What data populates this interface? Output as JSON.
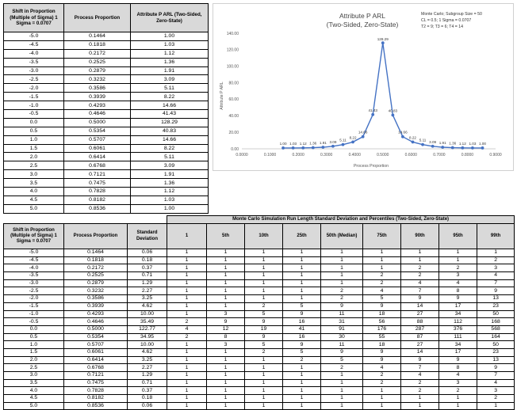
{
  "table1": {
    "headers": [
      "Shift in Proportion (Multiple of Sigma) 1 Sigma = 0.0707",
      "Process Proportion",
      "Attribute P ARL (Two-Sided, Zero-State)"
    ],
    "rows": [
      [
        "-5.0",
        "0.1464",
        "1.00"
      ],
      [
        "-4.5",
        "0.1818",
        "1.03"
      ],
      [
        "-4.0",
        "0.2172",
        "1.12"
      ],
      [
        "-3.5",
        "0.2525",
        "1.36"
      ],
      [
        "-3.0",
        "0.2879",
        "1.91"
      ],
      [
        "-2.5",
        "0.3232",
        "3.09"
      ],
      [
        "-2.0",
        "0.3586",
        "5.11"
      ],
      [
        "-1.5",
        "0.3939",
        "8.22"
      ],
      [
        "-1.0",
        "0.4293",
        "14.66"
      ],
      [
        "-0.5",
        "0.4646",
        "41.43"
      ],
      [
        "0.0",
        "0.5000",
        "128.29"
      ],
      [
        "0.5",
        "0.5354",
        "40.83"
      ],
      [
        "1.0",
        "0.5707",
        "14.66"
      ],
      [
        "1.5",
        "0.6061",
        "8.22"
      ],
      [
        "2.0",
        "0.6414",
        "5.11"
      ],
      [
        "2.5",
        "0.6768",
        "3.09"
      ],
      [
        "3.0",
        "0.7121",
        "1.91"
      ],
      [
        "3.5",
        "0.7475",
        "1.36"
      ],
      [
        "4.0",
        "0.7828",
        "1.12"
      ],
      [
        "4.5",
        "0.8182",
        "1.03"
      ],
      [
        "5.0",
        "0.8536",
        "1.00"
      ]
    ]
  },
  "chart_data": {
    "type": "line",
    "title": "Attribute P ARL",
    "subtitle": "(Two-Sided, Zero-State)",
    "annotation": [
      "Monte Carlo; Subgroup Size = 50",
      "CL = 0.5; 1 Sigma = 0.0707",
      "T2 = 9; T3 = 6; T4 = 14"
    ],
    "xlabel": "Process Proportion",
    "ylabel": "Attribute P ARL",
    "xlim": [
      0,
      0.9
    ],
    "ylim": [
      0,
      140
    ],
    "x_ticks": [
      "0.0000",
      "0.1000",
      "0.2000",
      "0.3000",
      "0.4000",
      "0.5000",
      "0.6000",
      "0.7000",
      "0.8000",
      "0.9000"
    ],
    "y_ticks": [
      "0.00",
      "20.00",
      "40.00",
      "60.00",
      "80.00",
      "100.00",
      "120.00",
      "140.00"
    ],
    "series": [
      {
        "x": [
          0.1464,
          0.1818,
          0.2172,
          0.2525,
          0.2879,
          0.3232,
          0.3586,
          0.3939,
          0.4293,
          0.4646,
          0.5,
          0.5354,
          0.5707,
          0.6061,
          0.6414,
          0.6768,
          0.7121,
          0.7475,
          0.7828,
          0.8182,
          0.8536
        ],
        "y": [
          1.0,
          1.03,
          1.12,
          1.36,
          1.91,
          3.09,
          5.11,
          8.22,
          14.66,
          41.43,
          128.29,
          40.83,
          14.66,
          8.22,
          5.11,
          3.09,
          1.91,
          1.36,
          1.12,
          1.03,
          1.0
        ],
        "labels": [
          "1.00",
          "1.03",
          "1.12",
          "1.36",
          "1.91",
          "3.09",
          "5.11",
          "8.22",
          "14.66",
          "41.43",
          "128.29",
          "40.83",
          "14.66",
          "8.22",
          "5.11",
          "3.09",
          "1.91",
          "1.36",
          "1.12",
          "1.03",
          "1.00"
        ]
      }
    ],
    "colors": {
      "line": "#4472c4"
    },
    "grid": false
  },
  "table2": {
    "title": "Monte Carlo Simulation Run Length Standard Deviation and Percentiles (Two-Sided, Zero-State)",
    "headers": [
      "Shift in Proportion (Multiple of Sigma) 1 Sigma = 0.0707",
      "Process Proportion",
      "Standard Deviation",
      "1",
      "5th",
      "10th",
      "25th",
      "50th (Median)",
      "75th",
      "90th",
      "95th",
      "99th"
    ],
    "rows": [
      [
        "-5.0",
        "0.1464",
        "0.06",
        "1",
        "1",
        "1",
        "1",
        "1",
        "1",
        "1",
        "1",
        "1"
      ],
      [
        "-4.5",
        "0.1818",
        "0.18",
        "1",
        "1",
        "1",
        "1",
        "1",
        "1",
        "1",
        "1",
        "2"
      ],
      [
        "-4.0",
        "0.2172",
        "0.37",
        "1",
        "1",
        "1",
        "1",
        "1",
        "1",
        "2",
        "2",
        "3"
      ],
      [
        "-3.5",
        "0.2525",
        "0.71",
        "1",
        "1",
        "1",
        "1",
        "1",
        "2",
        "2",
        "3",
        "4"
      ],
      [
        "-3.0",
        "0.2879",
        "1.29",
        "1",
        "1",
        "1",
        "1",
        "1",
        "2",
        "4",
        "4",
        "7"
      ],
      [
        "-2.5",
        "0.3232",
        "2.27",
        "1",
        "1",
        "1",
        "1",
        "2",
        "4",
        "7",
        "8",
        "9"
      ],
      [
        "-2.0",
        "0.3586",
        "3.25",
        "1",
        "1",
        "1",
        "1",
        "2",
        "5",
        "9",
        "9",
        "13"
      ],
      [
        "-1.5",
        "0.3939",
        "4.62",
        "1",
        "1",
        "2",
        "5",
        "9",
        "9",
        "14",
        "17",
        "23"
      ],
      [
        "-1.0",
        "0.4293",
        "10.00",
        "1",
        "3",
        "5",
        "9",
        "11",
        "18",
        "27",
        "34",
        "50"
      ],
      [
        "-0.5",
        "0.4646",
        "35.49",
        "2",
        "9",
        "9",
        "16",
        "31",
        "56",
        "88",
        "112",
        "168"
      ],
      [
        "0.0",
        "0.5000",
        "122.77",
        "4",
        "12",
        "19",
        "41",
        "91",
        "176",
        "287",
        "376",
        "568"
      ],
      [
        "0.5",
        "0.5354",
        "34.95",
        "2",
        "8",
        "9",
        "16",
        "30",
        "55",
        "87",
        "111",
        "164"
      ],
      [
        "1.0",
        "0.5707",
        "10.00",
        "1",
        "3",
        "5",
        "9",
        "11",
        "18",
        "27",
        "34",
        "50"
      ],
      [
        "1.5",
        "0.6061",
        "4.62",
        "1",
        "1",
        "2",
        "5",
        "9",
        "9",
        "14",
        "17",
        "23"
      ],
      [
        "2.0",
        "0.6414",
        "3.25",
        "1",
        "1",
        "1",
        "2",
        "5",
        "9",
        "9",
        "9",
        "13"
      ],
      [
        "2.5",
        "0.6768",
        "2.27",
        "1",
        "1",
        "1",
        "1",
        "2",
        "4",
        "7",
        "8",
        "9"
      ],
      [
        "3.0",
        "0.7121",
        "1.29",
        "1",
        "1",
        "1",
        "1",
        "1",
        "2",
        "4",
        "4",
        "7"
      ],
      [
        "3.5",
        "0.7475",
        "0.71",
        "1",
        "1",
        "1",
        "1",
        "1",
        "2",
        "2",
        "3",
        "4"
      ],
      [
        "4.0",
        "0.7828",
        "0.37",
        "1",
        "1",
        "1",
        "1",
        "1",
        "1",
        "2",
        "2",
        "3"
      ],
      [
        "4.5",
        "0.8182",
        "0.18",
        "1",
        "1",
        "1",
        "1",
        "1",
        "1",
        "1",
        "1",
        "2"
      ],
      [
        "5.0",
        "0.8536",
        "0.06",
        "1",
        "1",
        "1",
        "1",
        "1",
        "1",
        "1",
        "1",
        "1"
      ]
    ]
  }
}
